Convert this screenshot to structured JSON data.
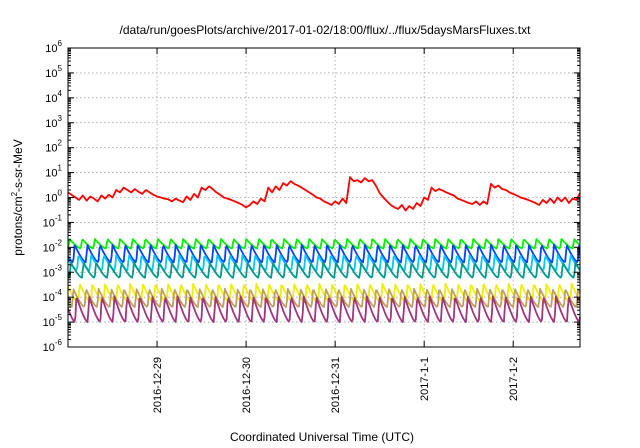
{
  "chart_data": {
    "type": "line",
    "title": "/data/run/goesPlots/archive/2017-01-02/18:00/flux/../flux/5daysMarsFluxes.txt",
    "xlabel": "Coordinated Universal Time (UTC)",
    "ylabel_parts": {
      "pre": "protons/cm",
      "sup": "2",
      "post": "-s-sr-MeV"
    },
    "y_scale": "log",
    "y_range": [
      1e-06,
      1000000.0
    ],
    "y_tick_exponents": [
      -6,
      -5,
      -4,
      -3,
      -2,
      -1,
      0,
      1,
      2,
      3,
      4,
      5,
      6
    ],
    "y_tick_base": "10",
    "x_range": [
      "2016-12-28 00:00",
      "2017-01-02 18:00"
    ],
    "x_ticks": [
      "2016-12-29",
      "2016-12-30",
      "2016-12-31",
      "2017-1-1",
      "2017-1-2"
    ],
    "grid": true,
    "series": [
      {
        "color": "#ff0000",
        "x_hours": [
          0,
          2,
          3,
          4,
          5,
          6,
          7,
          8,
          9,
          10,
          11,
          12,
          13,
          14,
          15,
          16,
          17,
          18,
          19,
          20,
          21,
          22,
          23,
          24,
          25,
          26,
          27,
          28,
          29,
          30,
          31,
          32,
          33,
          34,
          35,
          36,
          37,
          38,
          39,
          40,
          41,
          42,
          43,
          44,
          45,
          46,
          47,
          48,
          49,
          50,
          51,
          52,
          53,
          54,
          55,
          56,
          57,
          58,
          59,
          60,
          61,
          62,
          63,
          64,
          65,
          66,
          67,
          68,
          69,
          70,
          71,
          72,
          73,
          74,
          75,
          76,
          77,
          78,
          79,
          80,
          81,
          82,
          83,
          84,
          85,
          86,
          87,
          88,
          89,
          90,
          91,
          92,
          93,
          94,
          95,
          96,
          97,
          98,
          99,
          100,
          101,
          102,
          103,
          104,
          105,
          106,
          107,
          108,
          109,
          110,
          111,
          112,
          113,
          114,
          115,
          116,
          117,
          118,
          119,
          120,
          121,
          122,
          123,
          124,
          125,
          126,
          127,
          128,
          129,
          130,
          131,
          132,
          133,
          134,
          135,
          136,
          137,
          138
        ],
        "values": [
          1.6,
          1.0,
          0.8,
          1.2,
          0.75,
          1.1,
          0.9,
          0.7,
          1.2,
          0.9,
          1.3,
          1.0,
          2.0,
          1.6,
          2.5,
          2.0,
          1.6,
          2.2,
          1.7,
          1.4,
          2.0,
          1.6,
          1.3,
          1.1,
          1.0,
          0.9,
          0.85,
          0.7,
          0.9,
          0.75,
          0.65,
          1.1,
          0.8,
          1.4,
          1.0,
          2.5,
          2.0,
          2.8,
          2.2,
          1.6,
          1.3,
          1.0,
          0.9,
          0.8,
          0.7,
          0.6,
          0.5,
          0.4,
          0.5,
          0.7,
          0.55,
          0.9,
          0.7,
          2.5,
          1.6,
          2.8,
          2.0,
          3.8,
          3.0,
          4.5,
          3.5,
          3.0,
          2.5,
          2.0,
          1.6,
          1.3,
          1.0,
          0.9,
          0.7,
          0.6,
          0.5,
          0.7,
          0.55,
          0.9,
          0.6,
          6.5,
          4.5,
          5.0,
          4.0,
          6.0,
          4.5,
          5.0,
          3.0,
          1.5,
          1.0,
          0.7,
          0.5,
          0.4,
          0.35,
          0.5,
          0.3,
          0.45,
          0.35,
          0.6,
          0.45,
          1.0,
          0.8,
          2.5,
          1.8,
          2.2,
          1.9,
          1.6,
          1.4,
          1.2,
          0.9,
          0.8,
          0.7,
          0.6,
          0.55,
          0.7,
          0.5,
          0.7,
          0.55,
          3.5,
          2.5,
          3.0,
          2.2,
          2.0,
          1.6,
          1.4,
          1.2,
          1.0,
          0.9,
          0.8,
          0.7,
          0.6,
          0.5,
          0.8,
          0.6,
          0.9,
          0.6,
          1.0,
          0.7,
          1.0,
          0.6,
          0.9,
          0.8,
          1.5
        ]
      },
      {
        "color": "#00ee00",
        "low": 0.009,
        "high": 0.022,
        "phase": 0.0
      },
      {
        "color": "#0044ff",
        "low": 0.0025,
        "high": 0.013,
        "phase": 0.6
      },
      {
        "color": "#00c8ff",
        "low": 0.0012,
        "high": 0.005,
        "phase": 0.3
      },
      {
        "color": "#009a8e",
        "low": 0.0006,
        "high": 0.0025,
        "phase": 0.9
      },
      {
        "color": "#eeee00",
        "low": 6e-05,
        "high": 0.00035,
        "phase": 0.2
      },
      {
        "color": "#c0a060",
        "low": 4e-05,
        "high": 0.00022,
        "phase": 0.7
      },
      {
        "color": "#a03580",
        "low": 1e-05,
        "high": 0.00011,
        "phase": 0.45
      }
    ],
    "sawtooth_period_hours": 3.4
  }
}
